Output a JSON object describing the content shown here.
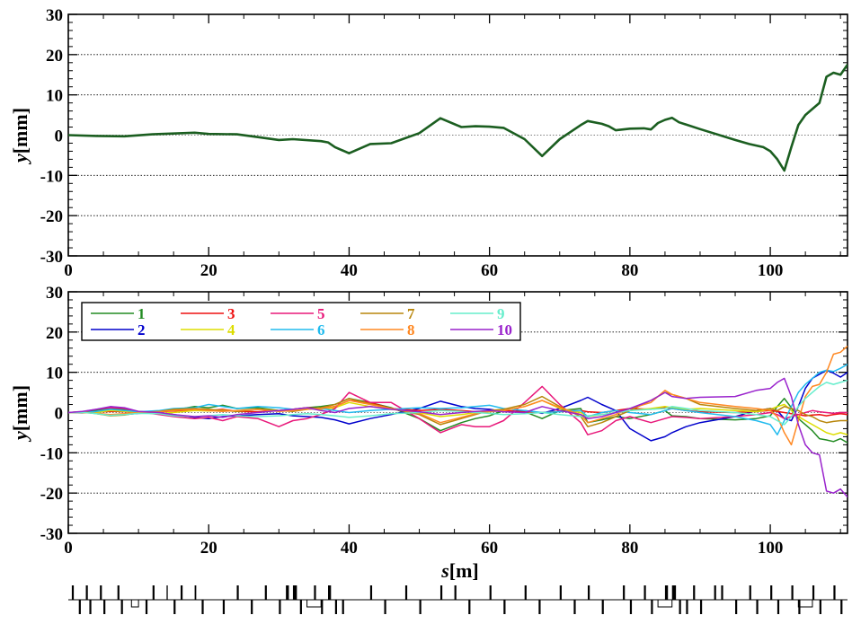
{
  "chart_data": [
    {
      "type": "line",
      "xlim": [
        0,
        111
      ],
      "ylim": [
        -30,
        30
      ],
      "xticks": [
        "0",
        "20",
        "40",
        "60",
        "80",
        "100"
      ],
      "yticks": [
        "-30",
        "-20",
        "-10",
        "0",
        "10",
        "20",
        "30"
      ],
      "ylabel_main": "y",
      "ylabel_unit": "[mm]",
      "xlabel_main": "",
      "xlabel_unit": "",
      "grid": "horizontal dotted lines at ±10, ±20",
      "series": [
        {
          "color": "#1b5e20",
          "x": [
            0,
            4,
            8,
            12,
            18,
            20,
            24,
            27,
            30,
            32,
            36,
            37,
            38,
            40,
            43,
            46,
            50,
            53,
            56,
            58,
            60,
            62,
            65,
            67.5,
            70,
            73,
            74,
            76,
            77,
            78,
            80,
            82,
            83,
            84,
            85,
            86,
            87,
            90,
            95,
            97,
            99,
            100,
            101,
            102,
            103,
            104,
            105,
            106,
            107,
            108,
            109,
            110,
            111
          ],
          "y": [
            0,
            -0.2,
            -0.3,
            0.2,
            0.6,
            0.3,
            0.2,
            -0.5,
            -1.2,
            -1.0,
            -1.5,
            -1.8,
            -3.0,
            -4.5,
            -2.2,
            -2.0,
            0.5,
            4.2,
            2.0,
            2.2,
            2.1,
            1.8,
            -1.0,
            -5.2,
            -1.0,
            2.5,
            3.5,
            2.8,
            2.2,
            1.2,
            1.6,
            1.7,
            1.4,
            3.0,
            3.8,
            4.3,
            3.2,
            1.5,
            -1.2,
            -2.2,
            -3.0,
            -4.0,
            -6.0,
            -8.8,
            -3.0,
            2.5,
            5.0,
            6.5,
            8.0,
            14.5,
            15.5,
            15.0,
            17.5
          ]
        }
      ]
    },
    {
      "type": "line",
      "xlim": [
        0,
        111
      ],
      "ylim": [
        -30,
        30
      ],
      "xticks": [
        "0",
        "20",
        "40",
        "60",
        "80",
        "100"
      ],
      "yticks": [
        "-30",
        "-20",
        "-10",
        "0",
        "10",
        "20",
        "30"
      ],
      "ylabel_main": "y",
      "ylabel_unit": "[mm]",
      "xlabel_main": "s",
      "xlabel_unit": "[m]",
      "grid": "horizontal dotted lines at ±10, ±20",
      "legend_position": "top-left",
      "x": [
        0,
        2,
        4,
        6,
        8,
        10,
        13,
        15,
        18,
        20,
        22,
        24,
        27,
        30,
        32,
        34,
        36,
        38,
        40,
        43,
        46,
        50,
        53,
        56,
        58,
        60,
        62,
        65,
        67.5,
        70,
        73,
        74,
        76,
        78,
        80,
        83,
        85,
        86,
        88,
        90,
        95,
        98,
        100,
        101,
        102,
        103,
        104,
        105,
        106,
        107,
        108,
        109,
        110,
        111
      ],
      "series": [
        {
          "name": "1",
          "color": "#228b22",
          "values": [
            0,
            0.2,
            0.5,
            1.0,
            0.8,
            0.3,
            0.2,
            0.6,
            1.5,
            1.2,
            1.8,
            1.0,
            1.2,
            0.5,
            0.8,
            1.2,
            1.5,
            2.0,
            3.5,
            2.5,
            1.2,
            -1.5,
            -4.5,
            -2.5,
            -1.5,
            -0.8,
            0.5,
            0.2,
            -1.5,
            0.5,
            1.0,
            -2.5,
            -1.8,
            -1.0,
            -1.5,
            -0.5,
            0.5,
            -0.8,
            -1.0,
            -1.5,
            -1.8,
            -1.5,
            -0.8,
            1.5,
            3.5,
            1.2,
            -1.5,
            -3.0,
            -4.5,
            -6.5,
            -6.8,
            -7.2,
            -6.5,
            -7.5
          ]
        },
        {
          "name": "2",
          "color": "#0000cc",
          "values": [
            0,
            0.1,
            -0.2,
            -0.6,
            -0.5,
            -0.2,
            0.0,
            -0.5,
            -1.2,
            -1.5,
            -1.0,
            -0.8,
            -0.5,
            -0.3,
            -0.8,
            -1.0,
            -1.2,
            -1.8,
            -2.8,
            -1.5,
            -0.5,
            1.0,
            2.8,
            1.5,
            1.0,
            0.8,
            0.3,
            0.5,
            -0.2,
            1.0,
            3.0,
            3.8,
            2.0,
            0.5,
            -4.0,
            -7.0,
            -6.0,
            -5.0,
            -3.5,
            -2.5,
            -1.0,
            0.5,
            1.0,
            0.5,
            -1.5,
            -2.0,
            1.5,
            6.0,
            8.5,
            9.5,
            10.5,
            9.8,
            8.8,
            10.0
          ]
        },
        {
          "name": "3",
          "color": "#ee1111",
          "values": [
            0,
            0,
            0.1,
            0.3,
            0.2,
            0.1,
            0.2,
            0.4,
            0.6,
            0.5,
            0.8,
            0.3,
            0.2,
            0.5,
            0.8,
            1.2,
            1.0,
            1.5,
            3.0,
            2.5,
            1.0,
            0.5,
            0.8,
            0.5,
            0.2,
            0.3,
            0.5,
            0.2,
            0.0,
            0.3,
            0.5,
            0.2,
            0.0,
            0.5,
            1.0,
            0.8,
            1.2,
            1.0,
            0.5,
            0.2,
            0.0,
            0.3,
            0.5,
            0.3,
            0.0,
            -0.3,
            -0.5,
            -0.8,
            -0.6,
            -0.5,
            -0.8,
            -0.5,
            -0.3,
            -0.5
          ]
        },
        {
          "name": "4",
          "color": "#dddd00",
          "values": [
            0,
            -0.1,
            0.0,
            0.5,
            0.3,
            0.1,
            -0.2,
            0.0,
            0.5,
            0.4,
            0.6,
            0.3,
            0.8,
            0.5,
            0.6,
            1.0,
            0.8,
            1.2,
            2.5,
            1.5,
            0.8,
            0.0,
            -1.0,
            -0.5,
            0.0,
            0.2,
            0.5,
            1.5,
            3.0,
            1.0,
            0.0,
            -1.0,
            -0.5,
            0.0,
            0.5,
            1.0,
            1.5,
            1.2,
            0.8,
            1.0,
            0.5,
            0.2,
            0.8,
            1.5,
            2.0,
            0.5,
            -1.0,
            -2.0,
            -3.0,
            -4.0,
            -5.0,
            -5.5,
            -5.0,
            -5.5
          ]
        },
        {
          "name": "5",
          "color": "#e8187a",
          "values": [
            0,
            0.2,
            0.8,
            1.2,
            1.0,
            0.2,
            -0.5,
            -1.0,
            -1.5,
            -1.2,
            -2.0,
            -1.0,
            -1.5,
            -3.5,
            -2.0,
            -1.5,
            -0.5,
            1.0,
            5.0,
            2.5,
            2.5,
            -1.5,
            -5.0,
            -3.0,
            -3.5,
            -3.5,
            -2.0,
            2.5,
            6.5,
            2.0,
            -2.5,
            -5.5,
            -4.5,
            -2.0,
            -1.0,
            -2.5,
            -1.5,
            -1.0,
            -1.2,
            -1.5,
            -1.0,
            -0.5,
            0.0,
            -0.5,
            -1.5,
            -1.0,
            -0.5,
            0.0,
            0.5,
            0.2,
            0.0,
            -0.2,
            0.0,
            0.0
          ]
        },
        {
          "name": "6",
          "color": "#22bbee",
          "values": [
            0,
            -0.1,
            0.3,
            0.8,
            0.5,
            0.2,
            0.5,
            1.0,
            1.2,
            2.0,
            1.5,
            1.0,
            1.5,
            1.2,
            0.8,
            1.0,
            1.0,
            0.5,
            0.0,
            0.5,
            0.8,
            1.2,
            1.0,
            1.2,
            1.5,
            1.8,
            1.0,
            0.5,
            0.0,
            0.2,
            0.5,
            -1.0,
            0.0,
            0.5,
            0.0,
            -0.5,
            0.5,
            1.0,
            0.5,
            0.0,
            -1.0,
            -2.0,
            -3.0,
            -5.5,
            -2.0,
            1.5,
            5.0,
            7.0,
            8.5,
            10.0,
            10.5,
            10.2,
            11.0,
            12.0
          ]
        },
        {
          "name": "7",
          "color": "#b8860b",
          "values": [
            0,
            0.2,
            -0.3,
            -0.8,
            -0.6,
            0.0,
            0.3,
            0.8,
            1.0,
            0.8,
            0.5,
            0.3,
            0.8,
            0.5,
            0.3,
            0.8,
            1.2,
            2.0,
            3.5,
            2.2,
            1.0,
            -0.5,
            -3.0,
            -1.5,
            -0.5,
            0.5,
            0.8,
            2.0,
            4.0,
            1.5,
            -1.0,
            -3.5,
            -2.5,
            -1.0,
            0.5,
            3.0,
            5.0,
            4.5,
            3.5,
            2.0,
            1.0,
            0.5,
            1.0,
            0.5,
            1.5,
            1.0,
            0.5,
            -0.5,
            -1.0,
            -2.0,
            -2.5,
            -2.2,
            -2.0,
            -2.0
          ]
        },
        {
          "name": "8",
          "color": "#ff8822",
          "values": [
            0,
            0.0,
            -0.2,
            -0.5,
            -0.3,
            0.0,
            0.2,
            0.5,
            0.8,
            0.5,
            0.3,
            0.5,
            0.8,
            0.3,
            0.5,
            0.8,
            1.0,
            1.5,
            3.0,
            2.0,
            1.0,
            -0.2,
            -2.5,
            -1.2,
            -0.3,
            0.3,
            0.5,
            1.5,
            3.0,
            1.2,
            -0.5,
            -2.5,
            -1.5,
            -0.5,
            1.0,
            2.5,
            5.5,
            4.5,
            3.5,
            2.5,
            1.5,
            1.0,
            0.5,
            -1.0,
            -5.0,
            -8.0,
            -2.0,
            4.0,
            6.5,
            7.0,
            10.0,
            14.5,
            15.0,
            16.5
          ]
        },
        {
          "name": "9",
          "color": "#66eecc",
          "values": [
            0,
            0.1,
            -0.3,
            -0.7,
            -0.5,
            -0.2,
            -0.3,
            -0.8,
            -1.0,
            -0.8,
            -0.5,
            -0.8,
            -1.0,
            -0.8,
            -0.5,
            -0.3,
            -0.5,
            -0.8,
            -1.2,
            -0.8,
            -0.3,
            0.0,
            0.5,
            0.3,
            0.0,
            -0.2,
            -0.5,
            -0.3,
            0.0,
            -0.5,
            -1.0,
            -0.8,
            -0.5,
            0.0,
            0.5,
            0.8,
            1.0,
            1.5,
            1.0,
            0.5,
            0.0,
            -0.5,
            -1.0,
            -2.0,
            -3.0,
            -1.0,
            1.5,
            3.5,
            5.0,
            6.5,
            7.5,
            7.0,
            7.5,
            8.0
          ]
        },
        {
          "name": "10",
          "color": "#9922cc",
          "values": [
            0,
            0.3,
            0.8,
            1.5,
            1.2,
            0.3,
            0.0,
            -0.5,
            -1.0,
            -0.8,
            -1.2,
            -0.5,
            0.0,
            0.5,
            0.8,
            1.2,
            0.5,
            0.0,
            1.0,
            1.5,
            0.8,
            0.2,
            -0.5,
            0.0,
            0.3,
            0.5,
            0.2,
            0.0,
            1.5,
            0.5,
            -0.5,
            -1.5,
            -1.0,
            0.0,
            1.0,
            3.0,
            5.0,
            4.0,
            3.5,
            3.8,
            4.0,
            5.5,
            6.0,
            7.5,
            8.5,
            4.0,
            -3.0,
            -8.0,
            -10.0,
            -10.5,
            -19.5,
            -20.0,
            -19.0,
            -21.0
          ]
        }
      ]
    }
  ]
}
